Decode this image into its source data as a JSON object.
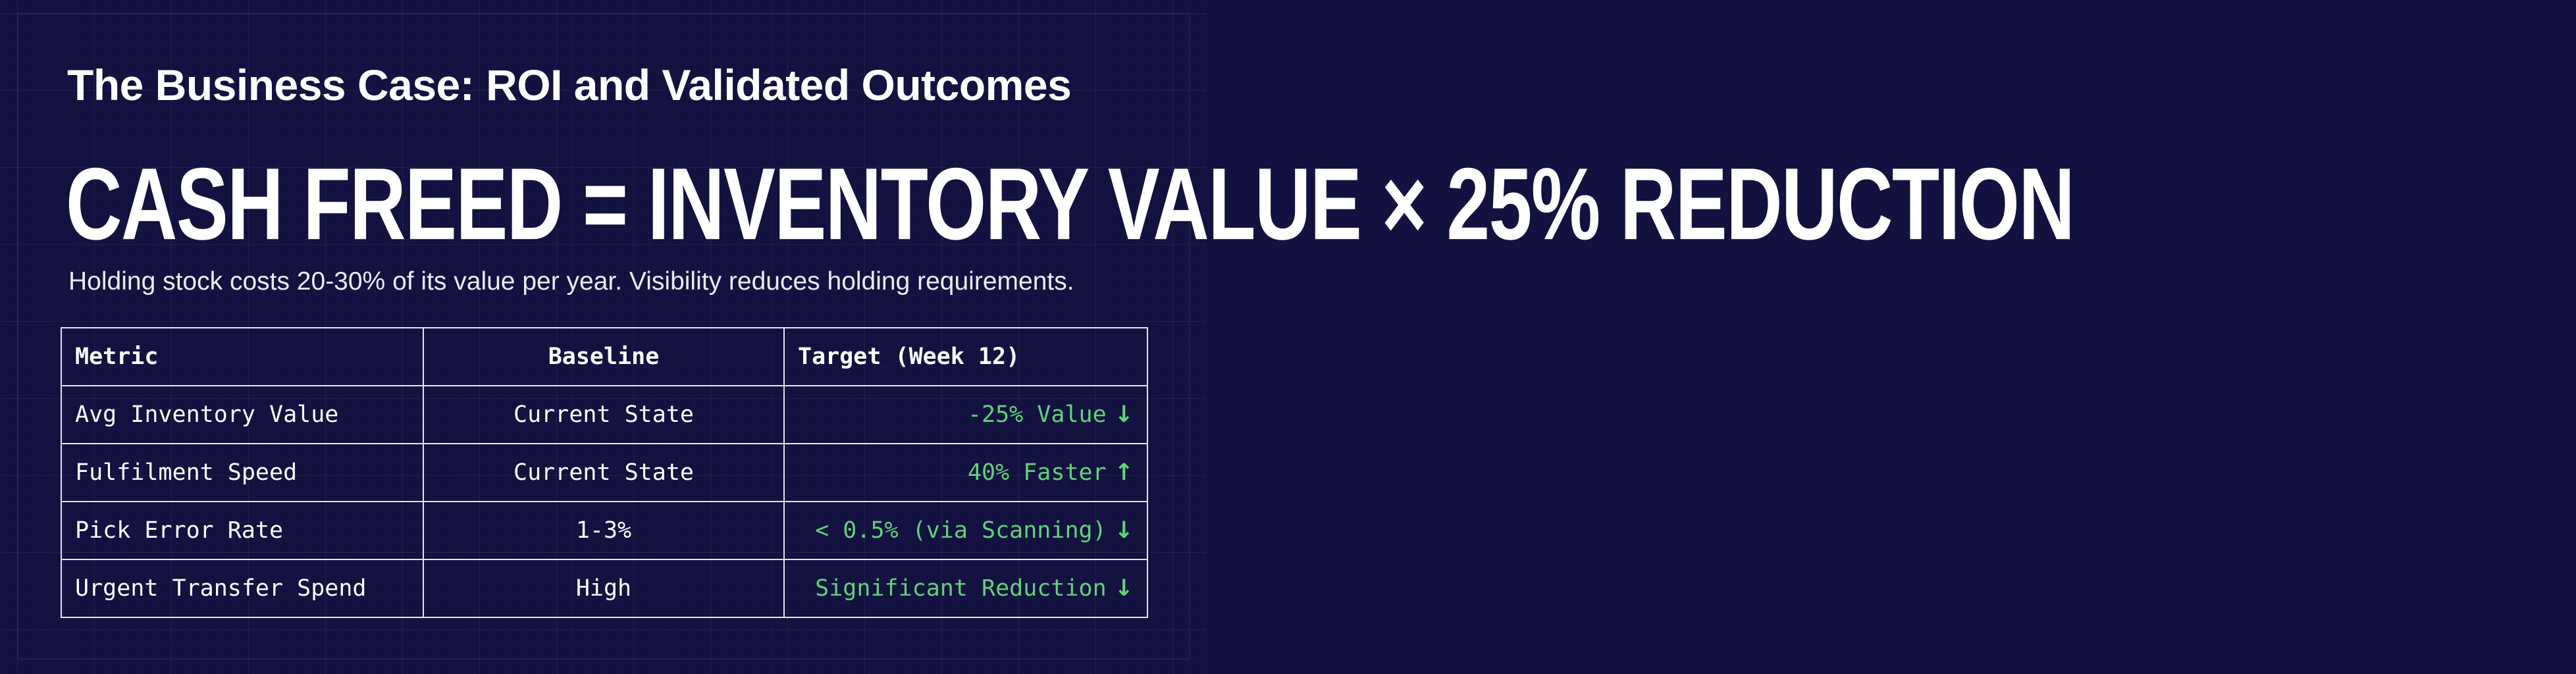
{
  "title": "The Business Case: ROI and Validated Outcomes",
  "formula": "CASH FREED = INVENTORY VALUE × 25% REDUCTION",
  "subtitle": "Holding stock costs 20-30% of its value per year. Visibility reduces holding requirements.",
  "table": {
    "headers": {
      "metric": "Metric",
      "baseline": "Baseline",
      "target": "Target (Week 12)"
    },
    "rows": [
      {
        "metric": "Avg Inventory Value",
        "baseline": "Current State",
        "target": "-25% Value",
        "arrow": "↓",
        "arrow_icon": "arrow-down-icon"
      },
      {
        "metric": "Fulfilment Speed",
        "baseline": "Current State",
        "target": "40% Faster",
        "arrow": "↑",
        "arrow_icon": "arrow-up-icon"
      },
      {
        "metric": "Pick Error Rate",
        "baseline": "1-3%",
        "target": "< 0.5% (via Scanning)",
        "arrow": "↓",
        "arrow_icon": "arrow-down-icon"
      },
      {
        "metric": "Urgent Transfer Spend",
        "baseline": "High",
        "target": "Significant Reduction",
        "arrow": "↓",
        "arrow_icon": "arrow-down-icon"
      }
    ]
  },
  "colors": {
    "background": "#13113f",
    "text": "#ffffff",
    "positive": "#5fd37a",
    "border": "#e6e6f0"
  }
}
